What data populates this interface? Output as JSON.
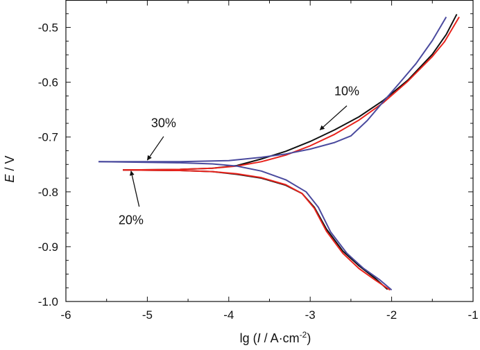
{
  "chart_data": {
    "type": "line",
    "title": "",
    "xlabel": {
      "prefix": "lg (",
      "italic": "I",
      "middle": " / A·cm",
      "sup": "-2",
      "suffix": ")"
    },
    "ylabel": {
      "italic": "E",
      "suffix": " / V"
    },
    "xlim": [
      -6,
      -1
    ],
    "ylim": [
      -1.0,
      -0.45
    ],
    "xticks": [
      -6,
      -5,
      -4,
      -3,
      -2,
      -1
    ],
    "xtick_labels": [
      "-6",
      "-5",
      "-4",
      "-3",
      "-2",
      "-1"
    ],
    "yticks": [
      -1.0,
      -0.9,
      -0.8,
      -0.7,
      -0.6,
      -0.5
    ],
    "ytick_labels": [
      "-1.0",
      "-0.9",
      "-0.8",
      "-0.7",
      "-0.6",
      "-0.5"
    ],
    "grid": false,
    "legend": "none",
    "series": [
      {
        "name": "10%",
        "color": "#111111",
        "anodic": [
          [
            -5.3,
            -0.76
          ],
          [
            -4.6,
            -0.759
          ],
          [
            -4.2,
            -0.757
          ],
          [
            -3.9,
            -0.752
          ],
          [
            -3.6,
            -0.74
          ],
          [
            -3.3,
            -0.726
          ],
          [
            -3.0,
            -0.708
          ],
          [
            -2.7,
            -0.687
          ],
          [
            -2.4,
            -0.663
          ],
          [
            -2.1,
            -0.633
          ],
          [
            -1.8,
            -0.596
          ],
          [
            -1.5,
            -0.549
          ],
          [
            -1.33,
            -0.513
          ],
          [
            -1.2,
            -0.476
          ]
        ],
        "cathodic": [
          [
            -5.3,
            -0.76
          ],
          [
            -4.6,
            -0.761
          ],
          [
            -4.2,
            -0.763
          ],
          [
            -3.9,
            -0.768
          ],
          [
            -3.6,
            -0.775
          ],
          [
            -3.3,
            -0.788
          ],
          [
            -3.1,
            -0.803
          ],
          [
            -2.95,
            -0.828
          ],
          [
            -2.8,
            -0.868
          ],
          [
            -2.6,
            -0.908
          ],
          [
            -2.4,
            -0.935
          ],
          [
            -2.2,
            -0.958
          ],
          [
            -2.05,
            -0.978
          ]
        ]
      },
      {
        "name": "20%",
        "color": "#e8231c",
        "anodic": [
          [
            -5.3,
            -0.76
          ],
          [
            -4.6,
            -0.759
          ],
          [
            -4.2,
            -0.757
          ],
          [
            -3.9,
            -0.753
          ],
          [
            -3.6,
            -0.745
          ],
          [
            -3.3,
            -0.733
          ],
          [
            -3.0,
            -0.716
          ],
          [
            -2.7,
            -0.695
          ],
          [
            -2.4,
            -0.669
          ],
          [
            -2.1,
            -0.637
          ],
          [
            -1.8,
            -0.598
          ],
          [
            -1.5,
            -0.553
          ],
          [
            -1.35,
            -0.526
          ],
          [
            -1.17,
            -0.481
          ]
        ],
        "cathodic": [
          [
            -5.3,
            -0.76
          ],
          [
            -4.6,
            -0.761
          ],
          [
            -4.2,
            -0.763
          ],
          [
            -3.9,
            -0.767
          ],
          [
            -3.6,
            -0.774
          ],
          [
            -3.3,
            -0.787
          ],
          [
            -3.1,
            -0.803
          ],
          [
            -2.95,
            -0.83
          ],
          [
            -2.8,
            -0.872
          ],
          [
            -2.6,
            -0.912
          ],
          [
            -2.4,
            -0.94
          ],
          [
            -2.2,
            -0.961
          ],
          [
            -2.02,
            -0.979
          ]
        ]
      },
      {
        "name": "30%",
        "color": "#4a4a9e",
        "anodic": [
          [
            -5.6,
            -0.745
          ],
          [
            -4.6,
            -0.745
          ],
          [
            -4.0,
            -0.743
          ],
          [
            -3.6,
            -0.737
          ],
          [
            -3.3,
            -0.731
          ],
          [
            -3.0,
            -0.722
          ],
          [
            -2.7,
            -0.71
          ],
          [
            -2.5,
            -0.698
          ],
          [
            -2.3,
            -0.67
          ],
          [
            -2.1,
            -0.635
          ],
          [
            -1.9,
            -0.601
          ],
          [
            -1.7,
            -0.566
          ],
          [
            -1.5,
            -0.524
          ],
          [
            -1.33,
            -0.481
          ]
        ],
        "cathodic": [
          [
            -5.6,
            -0.745
          ],
          [
            -4.6,
            -0.747
          ],
          [
            -4.2,
            -0.749
          ],
          [
            -3.9,
            -0.753
          ],
          [
            -3.6,
            -0.762
          ],
          [
            -3.3,
            -0.778
          ],
          [
            -3.05,
            -0.8
          ],
          [
            -2.9,
            -0.828
          ],
          [
            -2.75,
            -0.873
          ],
          [
            -2.55,
            -0.912
          ],
          [
            -2.35,
            -0.939
          ],
          [
            -2.15,
            -0.96
          ],
          [
            -2.0,
            -0.979
          ]
        ]
      }
    ],
    "annotations": [
      {
        "text": "10%",
        "label_at": [
          -2.55,
          -0.624
        ],
        "arrow_from": [
          -2.55,
          -0.643
        ],
        "arrow_to": [
          -2.88,
          -0.687
        ]
      },
      {
        "text": "20%",
        "label_at": [
          -5.2,
          -0.859
        ],
        "arrow_from": [
          -5.1,
          -0.827
        ],
        "arrow_to": [
          -5.2,
          -0.762
        ]
      },
      {
        "text": "30%",
        "label_at": [
          -4.8,
          -0.682
        ],
        "arrow_from": [
          -4.8,
          -0.699
        ],
        "arrow_to": [
          -5.0,
          -0.742
        ]
      }
    ]
  }
}
